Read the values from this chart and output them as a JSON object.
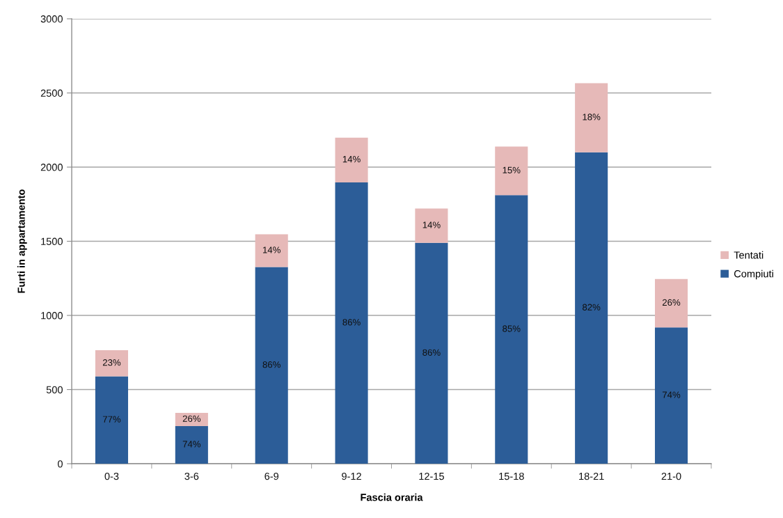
{
  "chart_data": {
    "type": "bar",
    "stacked": true,
    "xlabel": "Fascia oraria",
    "ylabel": "Furti in appartamento",
    "categories": [
      "0-3",
      "3-6",
      "6-9",
      "9-12",
      "12-15",
      "15-18",
      "18-21",
      "21-0"
    ],
    "series": [
      {
        "name": "Compiuti",
        "color": "#2c5d98",
        "values": [
          589,
          254,
          1326,
          1897,
          1489,
          1811,
          2100,
          919
        ]
      },
      {
        "name": "Tentati",
        "color": "#e6b9b8",
        "values": [
          176,
          89,
          221,
          302,
          232,
          327,
          466,
          326
        ]
      }
    ],
    "annotations": [
      "77%",
      "74%",
      "86%",
      "86%",
      "86%",
      "85%",
      "82%",
      "74%",
      "23%",
      "26%",
      "14%",
      "14%",
      "14%",
      "15%",
      "18%",
      "26%"
    ],
    "ylim": [
      0,
      3000
    ],
    "yticks": [
      0,
      500,
      1000,
      1500,
      2000,
      2500,
      3000
    ],
    "grid": "y",
    "legend": "right"
  }
}
